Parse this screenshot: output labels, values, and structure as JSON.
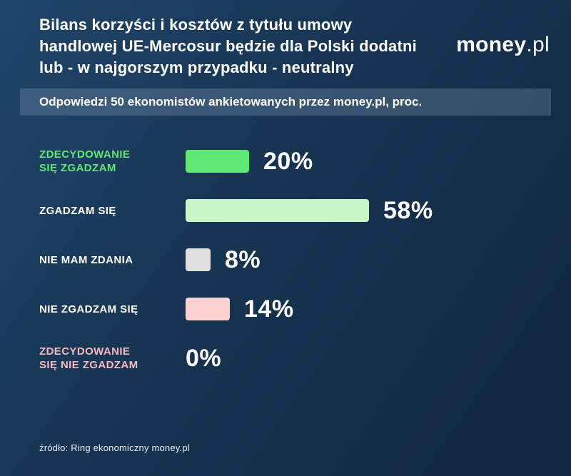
{
  "header": {
    "title": "Bilans korzyści i kosztów z tytułu umowy handlowej UE-Mercosur będzie dla Polski dodatni lub - w najgorszym przypadku - neutralny",
    "logo_bold": "money",
    "logo_light": ".pl"
  },
  "subtitle": "Odpowiedzi 50 ekonomistów ankietowanych przez money.pl, proc.",
  "source": "źródło: Ring ekonomiczny money.pl",
  "colors": {
    "background_top": "#20456b",
    "background_bottom": "#0f2540",
    "strong_agree_green": "#5fe873",
    "agree_light_green": "#c9f6c8",
    "neutral_gray": "#dfdfdf",
    "disagree_pink": "#fad2d2",
    "strong_disagree_label_pink": "#f6b9bd",
    "white": "#ffffff"
  },
  "chart_data": {
    "type": "bar",
    "orientation": "horizontal",
    "title": "Odpowiedzi 50 ekonomistów ankietowanych przez money.pl, proc.",
    "unit": "percent",
    "xlim": [
      0,
      100
    ],
    "categories": [
      "ZDECYDOWANIE\nSIĘ ZGADZAM",
      "ZGADZAM SIĘ",
      "NIE MAM ZDANIA",
      "NIE ZGADZAM SIĘ",
      "ZDECYDOWANIE\nSIĘ NIE ZGADZAM"
    ],
    "values": [
      20,
      58,
      8,
      14,
      0
    ],
    "value_labels": [
      "20%",
      "58%",
      "8%",
      "14%",
      "0%"
    ],
    "bar_colors": [
      "#5fe873",
      "#c9f6c8",
      "#dfdfdf",
      "#fad2d2",
      "none"
    ],
    "label_colors": [
      "#5fe873",
      "#ffffff",
      "#ffffff",
      "#ffffff",
      "#f6b9bd"
    ],
    "legend": "none",
    "grid": false
  }
}
